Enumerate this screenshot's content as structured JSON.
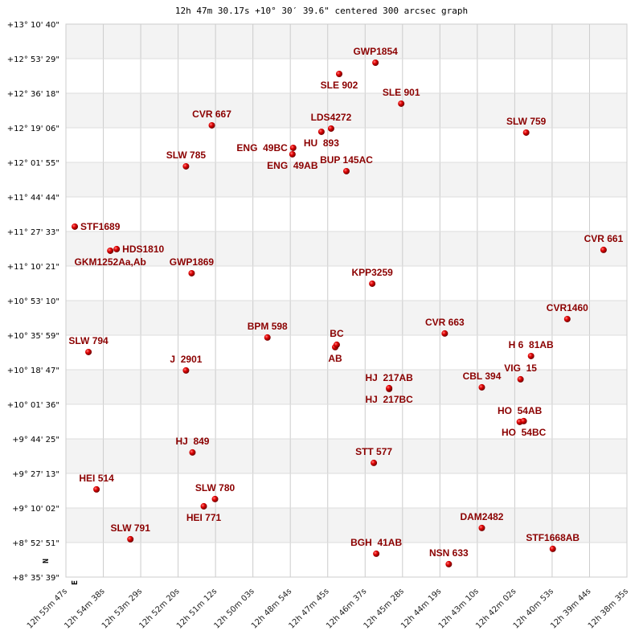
{
  "chart_data": {
    "type": "scatter",
    "title": "12h 47m 30.17s +10° 30′ 39.6\" centered 300 arcsec graph",
    "grid": true,
    "xlabel": "",
    "ylabel": "",
    "direction_labels": {
      "north": "N",
      "east": "E"
    },
    "xlim": [
      "12h 55m 47s",
      "12h 38m 35s"
    ],
    "ylim": [
      "+8° 35' 39\"",
      "+13° 10' 40\""
    ],
    "x_ticks": [
      "12h 55m 47s",
      "12h 54m 38s",
      "12h 53m 29s",
      "12h 52m 20s",
      "12h 51m 12s",
      "12h 50m 03s",
      "12h 48m 54s",
      "12h 47m 45s",
      "12h 46m 37s",
      "12h 45m 28s",
      "12h 44m 19s",
      "12h 43m 10s",
      "12h 42m 02s",
      "12h 40m 53s",
      "12h 39m 44s",
      "12h 38m 35s"
    ],
    "y_ticks": [
      "+13° 10' 40\"",
      "+12° 53' 29\"",
      "+12° 36' 18\"",
      "+12° 19' 06\"",
      "+12° 01' 55\"",
      "+11° 44' 44\"",
      "+11° 27' 33\"",
      "+11° 10' 21\"",
      "+10° 53' 10\"",
      "+10° 35' 59\"",
      "+10° 18' 47\"",
      "+10° 01' 36\"",
      "+9° 44' 25\"",
      "+9° 27' 13\"",
      "+9° 10' 02\"",
      "+8° 52' 51\"",
      "+8° 35' 39\""
    ],
    "colors": {
      "label": "#8b0000",
      "marker": "#dd0000",
      "band": "#f3f3f3",
      "grid": "#cccccc"
    },
    "points": [
      {
        "name": "GWP1854",
        "ra": "12h 46m 17.6s",
        "dec": "+12° 51' 29\""
      },
      {
        "name": "SLE 902",
        "ra": "12h 47m 24.3s",
        "dec": "+12° 45' 53\""
      },
      {
        "name": "SLE 901",
        "ra": "12h 45m 30.2s",
        "dec": "+12° 31' 06\""
      },
      {
        "name": "CVR 667",
        "ra": "12h 51m 18.6s",
        "dec": "+12° 20' 19\""
      },
      {
        "name": "LDS4272",
        "ra": "12h 47m 39.2s",
        "dec": "+12° 18' 43\""
      },
      {
        "name": "HU  893",
        "ra": "12h 47m 57.0s",
        "dec": "+12° 17' 07\""
      },
      {
        "name": "SLW 759",
        "ra": "12h 41m 40.3s",
        "dec": "+12° 16' 43\""
      },
      {
        "name": "ENG  49BC",
        "ra": "12h 48m 48.9s",
        "dec": "+12° 09' 07\""
      },
      {
        "name": "ENG  49AB",
        "ra": "12h 48m 50.3s",
        "dec": "+12° 05' 55\""
      },
      {
        "name": "SLW 785",
        "ra": "12h 52m 06.1s",
        "dec": "+11° 59' 56\""
      },
      {
        "name": "BUP 145AC",
        "ra": "12h 47m 11.0s",
        "dec": "+11° 57' 32\""
      },
      {
        "name": "STF1689",
        "ra": "12h 55m 30.7s",
        "dec": "+11° 29' 57\""
      },
      {
        "name": "GKM1252Aa,Ab",
        "ra": "12h 54m 25.4s",
        "dec": "+11° 17' 58\""
      },
      {
        "name": "HDS1810",
        "ra": "12h 54m 13.6s",
        "dec": "+11° 18' 46\""
      },
      {
        "name": "CVR 661",
        "ra": "12h 39m 18.0s",
        "dec": "+11° 18' 22\""
      },
      {
        "name": "GWP1869",
        "ra": "12h 51m 55.7s",
        "dec": "+11° 06' 46\""
      },
      {
        "name": "KPP3259",
        "ra": "12h 46m 23.5s",
        "dec": "+11° 01' 34\""
      },
      {
        "name": "CVR1460",
        "ra": "12h 40m 24.7s",
        "dec": "+10° 43' 59\""
      },
      {
        "name": "CVR 663",
        "ra": "12h 44m 10.1s",
        "dec": "+10° 36' 48\""
      },
      {
        "name": "BPM 598",
        "ra": "12h 49m 36.3s",
        "dec": "+10° 34' 48\""
      },
      {
        "name": "AB",
        "ra": "12h 47m 31.7s",
        "dec": "+10° 30' 00\""
      },
      {
        "name": "BC",
        "ra": "12h 47m 28.8s",
        "dec": "+10° 31' 12\""
      },
      {
        "name": "SLW 794",
        "ra": "12h 55m 05.5s",
        "dec": "+10° 27' 36\""
      },
      {
        "name": "H 6  81AB",
        "ra": "12h 41m 31.4s",
        "dec": "+10° 25' 36\""
      },
      {
        "name": "J  2901",
        "ra": "12h 52m 06.1s",
        "dec": "+10° 18' 25\""
      },
      {
        "name": "VIG  15",
        "ra": "12h 41m 50.7s",
        "dec": "+10° 14' 01\""
      },
      {
        "name": "CBL 394",
        "ra": "12h 43m 01.9s",
        "dec": "+10° 10' 01\""
      },
      {
        "name": "HJ  217AB",
        "ra": "12h 45m 52.4s",
        "dec": "+10° 09' 13\""
      },
      {
        "name": "HJ  217BC",
        "ra": "12h 45m 52.4s",
        "dec": "+10° 09' 37\""
      },
      {
        "name": "HO  54AB",
        "ra": "12h 41m 52.2s",
        "dec": "+9° 52' 50\""
      },
      {
        "name": "HO  54BC",
        "ra": "12h 41m 44.8s",
        "dec": "+9° 53' 14\""
      },
      {
        "name": "HJ  849",
        "ra": "12h 51m 54.2s",
        "dec": "+9° 37' 39\""
      },
      {
        "name": "STT 577",
        "ra": "12h 46m 20.6s",
        "dec": "+9° 32' 27\""
      },
      {
        "name": "HEI 514",
        "ra": "12h 54m 50.7s",
        "dec": "+9° 19' 16\""
      },
      {
        "name": "SLW 780",
        "ra": "12h 51m 12.7s",
        "dec": "+9° 14' 28\""
      },
      {
        "name": "HEI 771",
        "ra": "12h 51m 33.4s",
        "dec": "+9° 10' 52\""
      },
      {
        "name": "DAM2482",
        "ra": "12h 43m 01.9s",
        "dec": "+9° 00' 05\""
      },
      {
        "name": "SLW 791",
        "ra": "12h 53m 48.4s",
        "dec": "+8° 54' 29\""
      },
      {
        "name": "STF1668AB",
        "ra": "12h 40m 51.4s",
        "dec": "+8° 49' 41\""
      },
      {
        "name": "BGH  41AB",
        "ra": "12h 46m 16.1s",
        "dec": "+8° 47' 17\""
      },
      {
        "name": "NSN 633",
        "ra": "12h 44m 02.7s",
        "dec": "+8° 42' 05\""
      }
    ]
  }
}
